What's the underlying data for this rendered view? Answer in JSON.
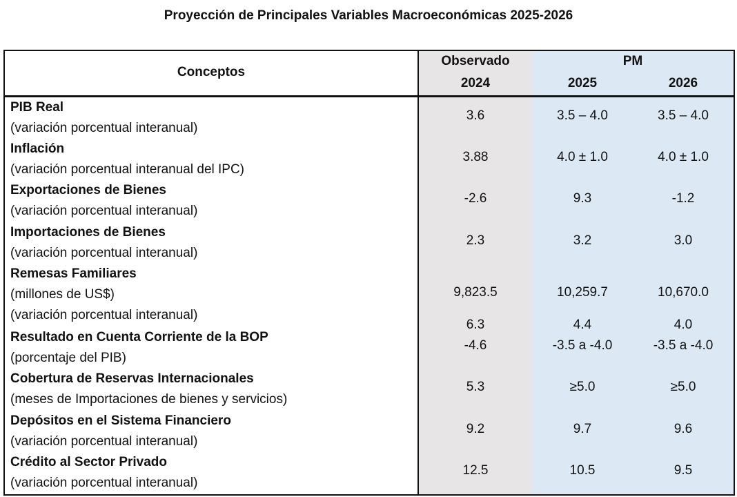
{
  "title": "Proyección de Principales Variables Macroeconómicas 2025-2026",
  "header": {
    "concepts": "Conceptos",
    "observed": "Observado",
    "observed_year": "2024",
    "pm": "PM",
    "year1": "2025",
    "year2": "2026"
  },
  "rows": [
    {
      "name": "PIB Real",
      "lines": [
        {
          "desc": "(variación porcentual interanual)",
          "values": [
            "3.6",
            "3.5 – 4.0",
            "3.5 – 4.0"
          ]
        }
      ]
    },
    {
      "name": "Inflación",
      "lines": [
        {
          "desc": "(variación porcentual interanual del IPC)",
          "values": [
            "3.88",
            "4.0 ± 1.0",
            "4.0 ± 1.0"
          ]
        }
      ]
    },
    {
      "name": "Exportaciones de Bienes",
      "lines": [
        {
          "desc": "(variación porcentual interanual)",
          "values": [
            "-2.6",
            "9.3",
            "-1.2"
          ]
        }
      ]
    },
    {
      "name": "Importaciones de Bienes",
      "lines": [
        {
          "desc": "(variación porcentual interanual)",
          "values": [
            "2.3",
            "3.2",
            "3.0"
          ]
        }
      ]
    },
    {
      "name": "Remesas Familiares",
      "lines": [
        {
          "desc": "(millones de US$)",
          "values": [
            "9,823.5",
            "10,259.7",
            "10,670.0"
          ]
        },
        {
          "desc": "(variación porcentual interanual)",
          "values": [
            "6.3",
            "4.4",
            "4.0"
          ]
        }
      ]
    },
    {
      "name": "Resultado en Cuenta Corriente de la BOP",
      "lines": [
        {
          "desc": "(porcentaje del PIB)",
          "values": [
            "-4.6",
            "-3.5 a -4.0",
            "-3.5 a -4.0"
          ]
        }
      ]
    },
    {
      "name": "Cobertura de Reservas Internacionales",
      "lines": [
        {
          "desc": "(meses de Importaciones de bienes y servicios)",
          "values": [
            "5.3",
            "≥5.0",
            "≥5.0"
          ]
        }
      ]
    },
    {
      "name": "Depósitos en el Sistema Financiero",
      "lines": [
        {
          "desc": "(variación porcentual interanual)",
          "values": [
            "9.2",
            "9.7",
            "9.6"
          ]
        }
      ]
    },
    {
      "name": "Crédito al Sector Privado",
      "lines": [
        {
          "desc": "(variación porcentual interanual)",
          "values": [
            "12.5",
            "10.5",
            "9.5"
          ]
        }
      ]
    }
  ]
}
